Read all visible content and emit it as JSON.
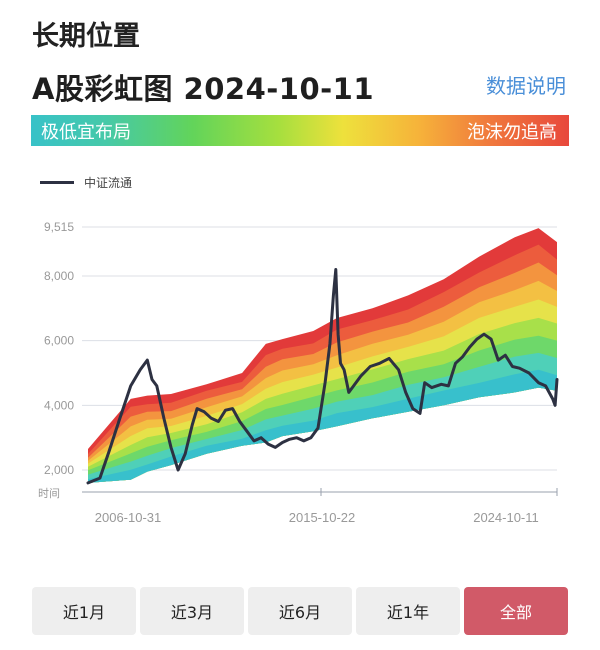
{
  "header": {
    "section_title": "长期位置",
    "chart_title": "A股彩虹图  2024-10-11",
    "data_link": "数据说明"
  },
  "scale": {
    "left_label": "极低宜布局",
    "right_label": "泡沫勿追高"
  },
  "legend": {
    "series_label": "中证流通"
  },
  "chart_data": {
    "type": "line",
    "ylim": [
      1500,
      9515
    ],
    "y_ticks": [
      "9,515",
      "8,000",
      "6,000",
      "4,000",
      "2,000"
    ],
    "x_axis_label": "时间",
    "x_ticks": [
      "2006-10-31",
      "2015-10-22",
      "2024-10-11"
    ],
    "x_start": "2005-01-01",
    "x_end": "2024-10-11",
    "band_colors": [
      "#38c0cc",
      "#4fd0b8",
      "#6ed86a",
      "#a8e04a",
      "#e6e24a",
      "#f3c043",
      "#f3943f",
      "#ec5c3d",
      "#e23a3a"
    ],
    "bands": {
      "years": [
        2005.0,
        2006.8,
        2007.5,
        2008.5,
        2010.0,
        2011.5,
        2012.5,
        2013.2,
        2014.5,
        2015.5,
        2017.0,
        2018.5,
        2020.0,
        2021.5,
        2023.0,
        2024.0,
        2024.78
      ],
      "lower": [
        1600,
        1700,
        1950,
        2150,
        2500,
        2750,
        2850,
        3050,
        3200,
        3350,
        3600,
        3800,
        4000,
        4250,
        4400,
        4550,
        4450
      ],
      "upper": [
        2650,
        4200,
        4300,
        4350,
        4650,
        5000,
        5900,
        6050,
        6300,
        6700,
        7000,
        7400,
        7900,
        8600,
        9200,
        9480,
        9050
      ]
    },
    "series": [
      {
        "name": "中证流通",
        "color": "#2d3142",
        "x": [
          2005.0,
          2005.5,
          2005.9,
          2006.3,
          2006.8,
          2007.2,
          2007.5,
          2007.7,
          2007.9,
          2008.2,
          2008.5,
          2008.8,
          2009.1,
          2009.4,
          2009.6,
          2009.9,
          2010.2,
          2010.5,
          2010.8,
          2011.1,
          2011.4,
          2011.7,
          2012.0,
          2012.3,
          2012.6,
          2012.9,
          2013.2,
          2013.5,
          2013.8,
          2014.1,
          2014.4,
          2014.7,
          2015.0,
          2015.2,
          2015.35,
          2015.45,
          2015.55,
          2015.65,
          2015.8,
          2016.0,
          2016.2,
          2016.5,
          2016.9,
          2017.3,
          2017.7,
          2018.1,
          2018.4,
          2018.7,
          2019.0,
          2019.2,
          2019.5,
          2019.9,
          2020.2,
          2020.5,
          2020.8,
          2021.1,
          2021.4,
          2021.7,
          2022.0,
          2022.3,
          2022.6,
          2022.9,
          2023.2,
          2023.6,
          2024.0,
          2024.3,
          2024.6,
          2024.7,
          2024.78
        ],
        "y": [
          1600,
          1750,
          2600,
          3500,
          4600,
          5100,
          5400,
          4800,
          4600,
          3600,
          2700,
          2000,
          2500,
          3400,
          3900,
          3800,
          3600,
          3500,
          3850,
          3900,
          3500,
          3200,
          2900,
          3000,
          2800,
          2700,
          2850,
          2950,
          3000,
          2900,
          3000,
          3300,
          4700,
          5900,
          7400,
          8200,
          6200,
          5300,
          5100,
          4400,
          4600,
          4900,
          5200,
          5300,
          5450,
          5100,
          4400,
          3900,
          3750,
          4700,
          4550,
          4650,
          4600,
          5300,
          5500,
          5800,
          6050,
          6200,
          6050,
          5400,
          5550,
          5200,
          5150,
          5000,
          4700,
          4600,
          4200,
          4000,
          4800
        ]
      }
    ]
  }
}
